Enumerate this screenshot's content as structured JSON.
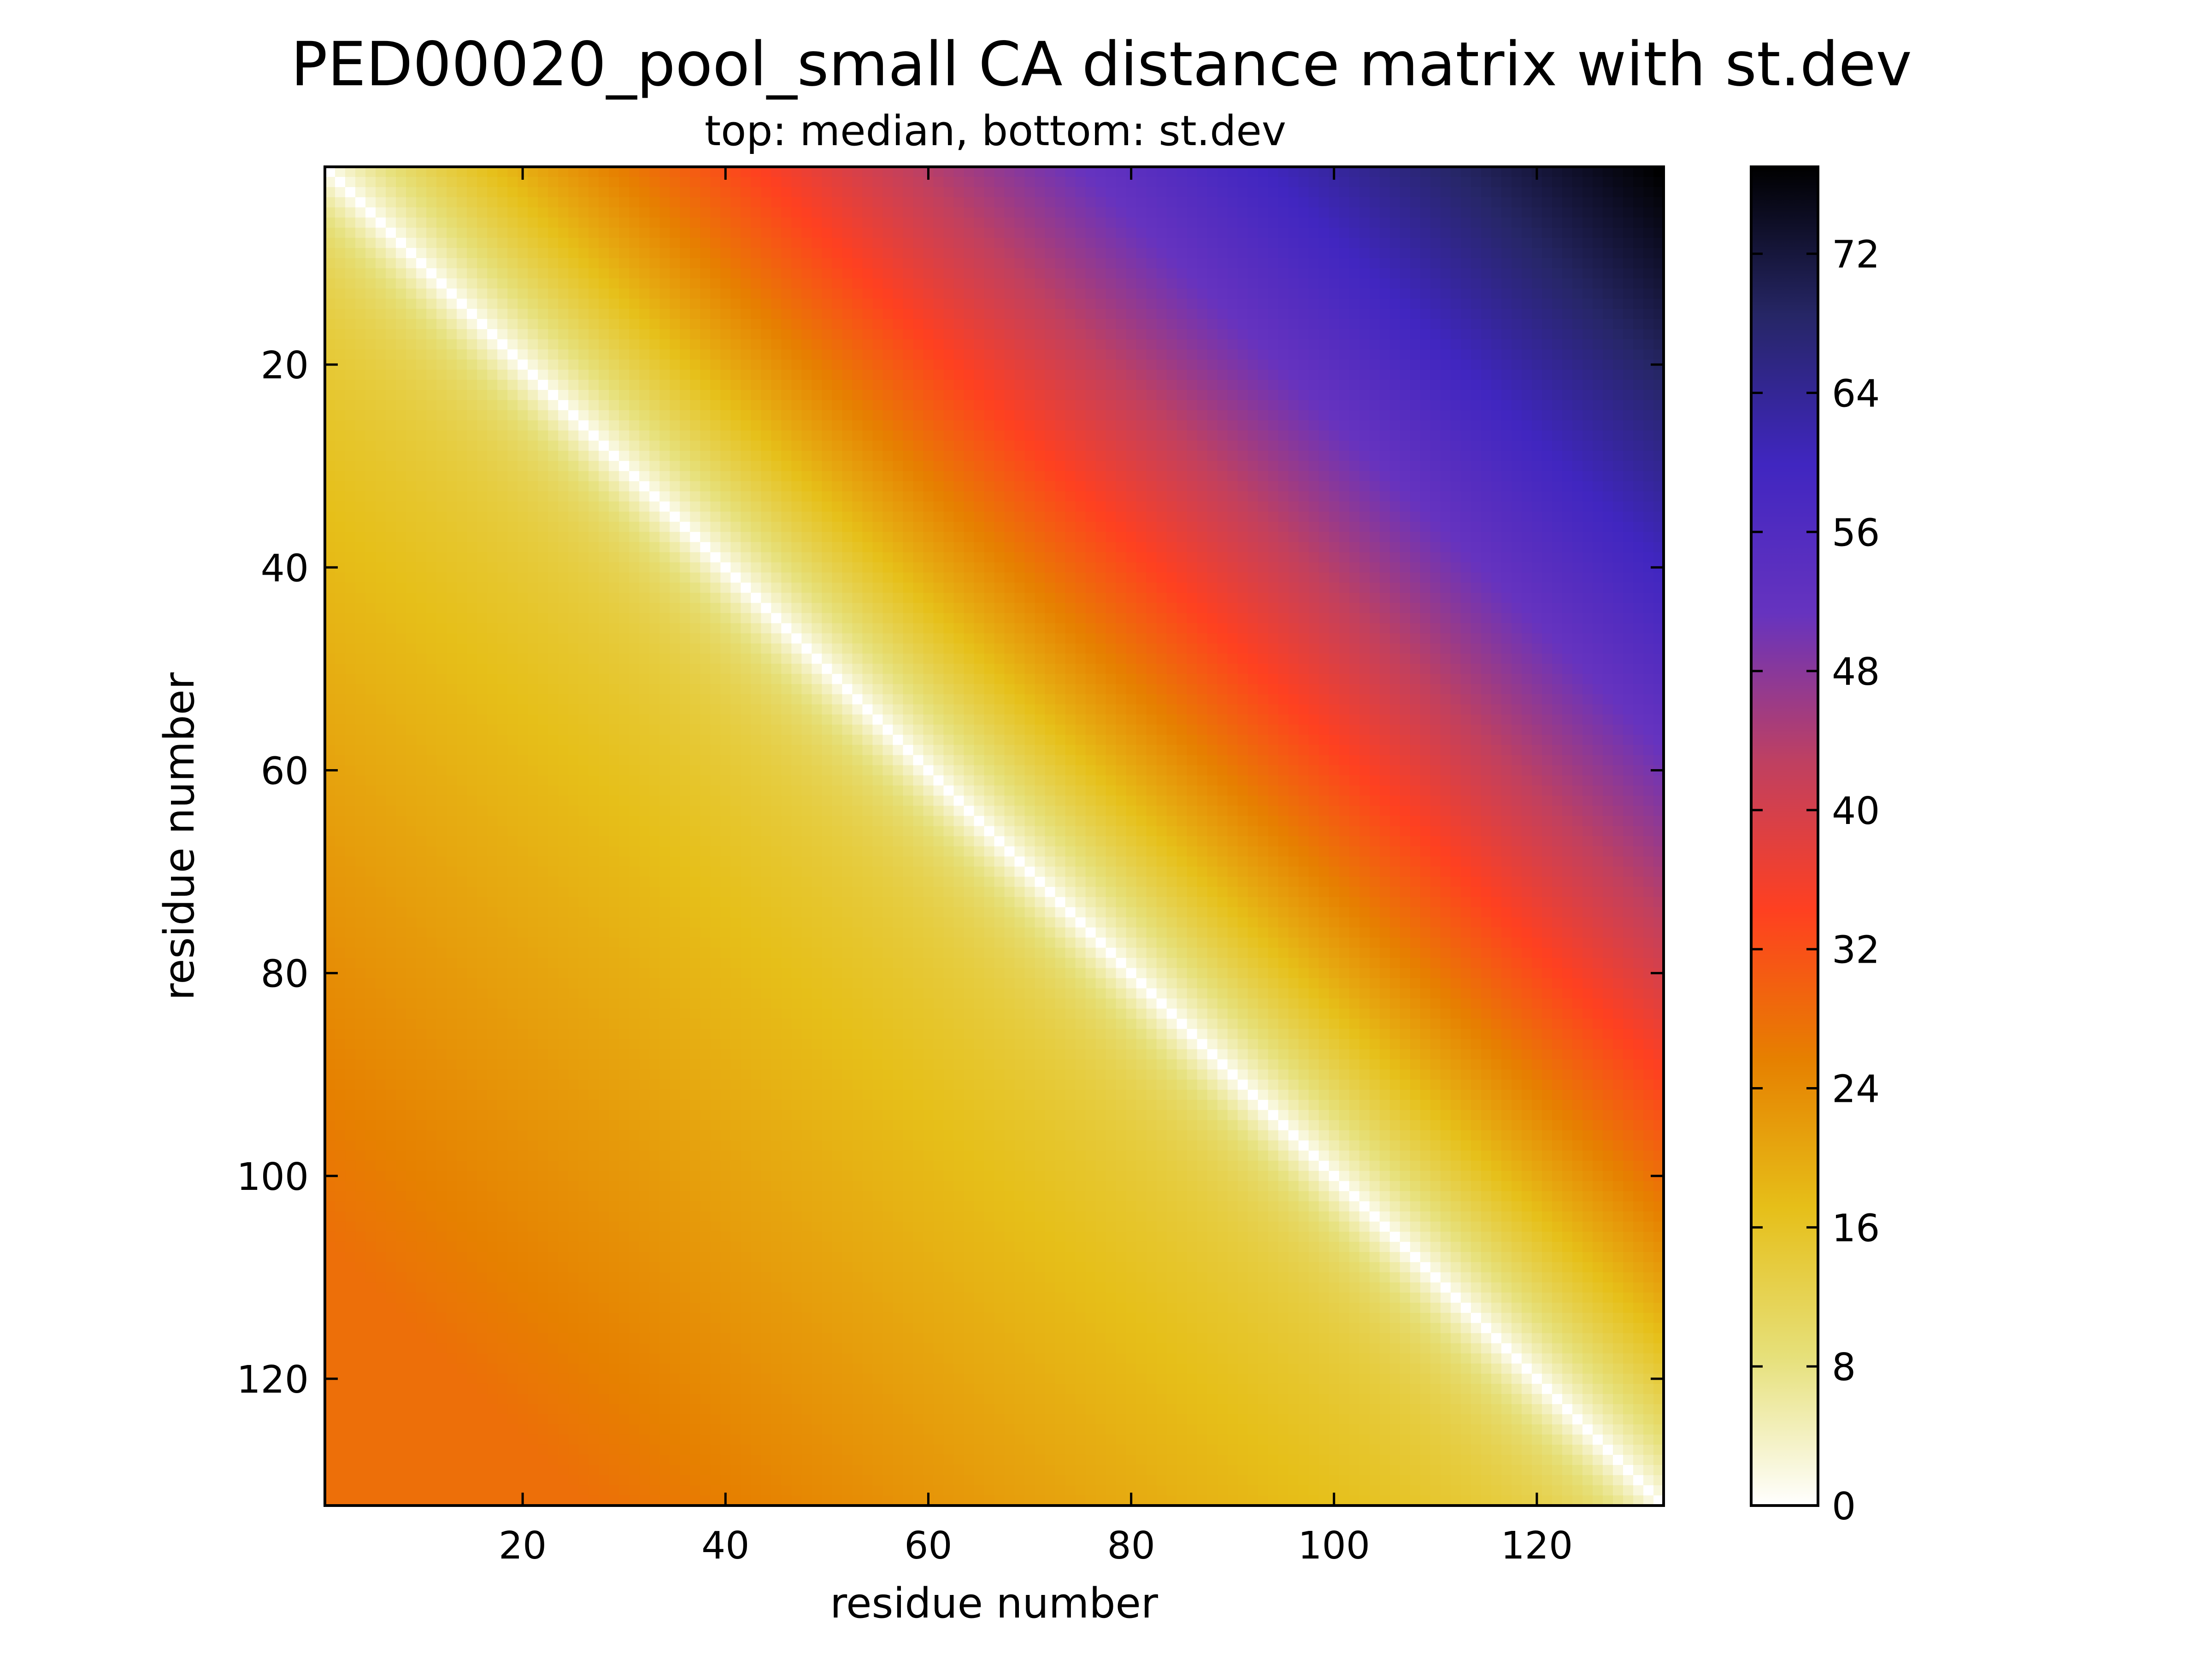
{
  "chart_data": {
    "type": "heatmap",
    "title": "PED00020_pool_small CA distance matrix with st.dev",
    "subtitle": "top: median,  bottom: st.dev",
    "xlabel": "residue number",
    "ylabel": "residue number",
    "x_range": [
      1,
      132
    ],
    "y_range": [
      1,
      132
    ],
    "y_inverted": true,
    "x_ticks": [
      20,
      40,
      60,
      80,
      100,
      120
    ],
    "y_ticks": [
      20,
      40,
      60,
      80,
      100,
      120
    ],
    "n_residues": 132,
    "colorbar": {
      "range": [
        0,
        77
      ],
      "ticks": [
        0,
        8,
        16,
        24,
        32,
        40,
        48,
        56,
        64,
        72
      ],
      "colormap": "CMRmap_r",
      "colors": [
        "#ffffff",
        "#e6e07a",
        "#e6bf19",
        "#e68000",
        "#ff4020",
        "#bf4061",
        "#6633bf",
        "#4026c0",
        "#262666",
        "#000000"
      ]
    },
    "upper_triangle": {
      "metric": "median CA distance",
      "min": 0,
      "max": 77,
      "max_location": "top-right corner"
    },
    "lower_triangle": {
      "metric": "st.dev of CA distance",
      "min": 0,
      "max": 28,
      "max_location": "bottom-left corner"
    },
    "grid": false
  }
}
